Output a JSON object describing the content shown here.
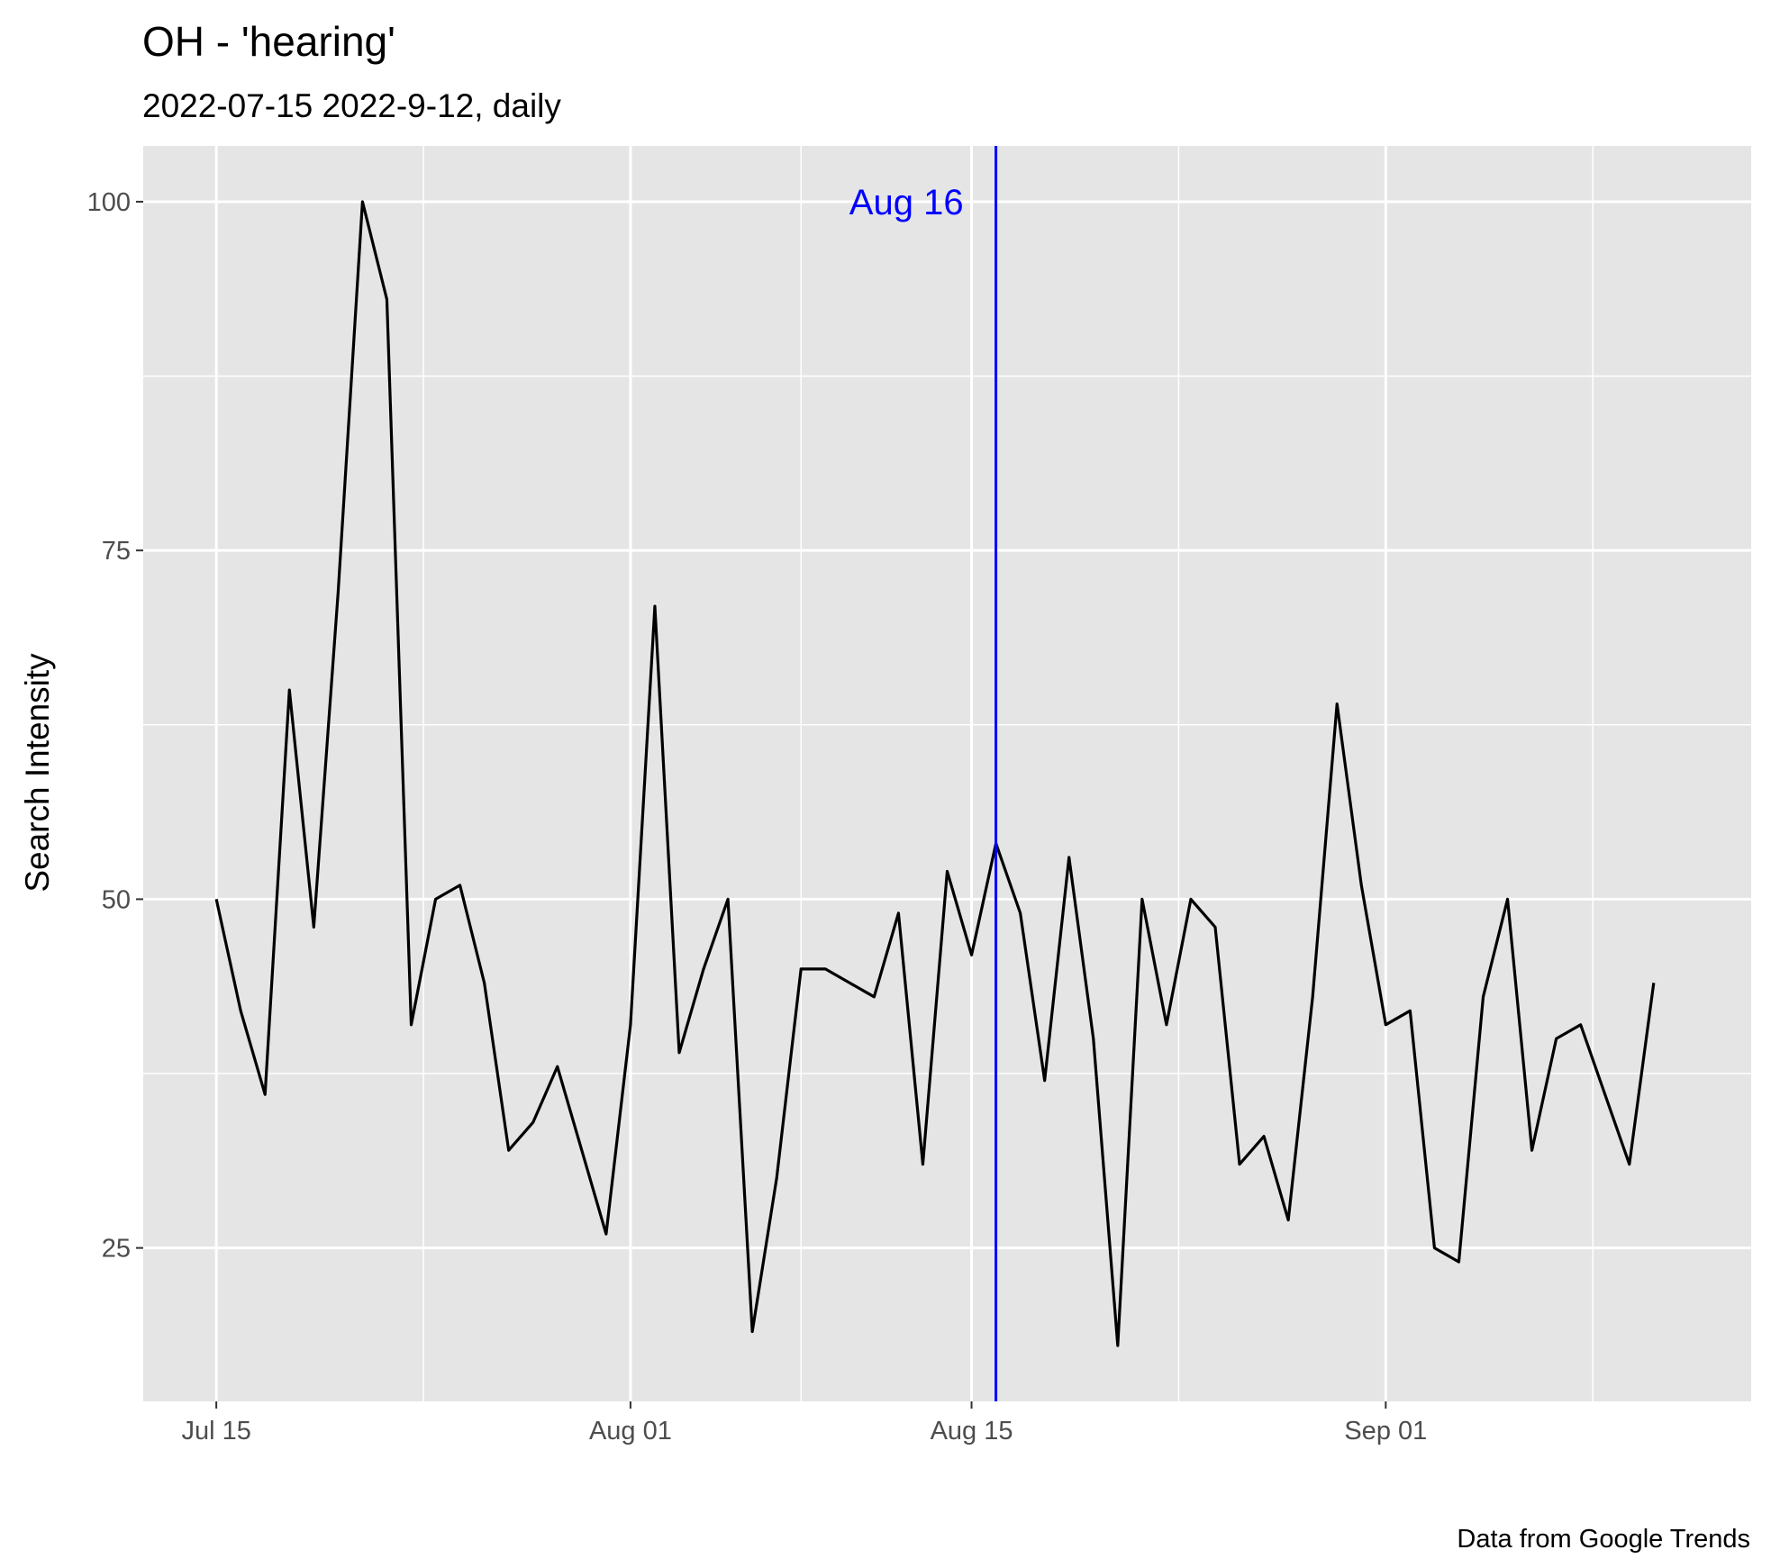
{
  "chart_data": {
    "type": "line",
    "title": "OH  - 'hearing'",
    "subtitle": "2022-07-15 2022-9-12, daily",
    "xlabel": "",
    "ylabel": "Search Intensity",
    "caption": "Data from Google Trends",
    "x_ticks": [
      {
        "date": "2022-07-15",
        "label": "Jul 15"
      },
      {
        "date": "2022-08-01",
        "label": "Aug 01"
      },
      {
        "date": "2022-08-15",
        "label": "Aug 15"
      },
      {
        "date": "2022-09-01",
        "label": "Sep 01"
      }
    ],
    "y_ticks": [
      25,
      50,
      75,
      100
    ],
    "xlim": [
      "2022-07-12",
      "2022-09-16"
    ],
    "ylim": [
      14,
      104
    ],
    "grid": true,
    "series": [
      {
        "color": "#000000",
        "x": [
          "2022-07-15",
          "2022-07-16",
          "2022-07-17",
          "2022-07-18",
          "2022-07-19",
          "2022-07-20",
          "2022-07-21",
          "2022-07-22",
          "2022-07-23",
          "2022-07-24",
          "2022-07-25",
          "2022-07-26",
          "2022-07-27",
          "2022-07-28",
          "2022-07-29",
          "2022-07-30",
          "2022-07-31",
          "2022-08-01",
          "2022-08-02",
          "2022-08-03",
          "2022-08-04",
          "2022-08-05",
          "2022-08-06",
          "2022-08-07",
          "2022-08-08",
          "2022-08-09",
          "2022-08-10",
          "2022-08-11",
          "2022-08-12",
          "2022-08-13",
          "2022-08-14",
          "2022-08-15",
          "2022-08-16",
          "2022-08-17",
          "2022-08-18",
          "2022-08-19",
          "2022-08-20",
          "2022-08-21",
          "2022-08-22",
          "2022-08-23",
          "2022-08-24",
          "2022-08-25",
          "2022-08-26",
          "2022-08-27",
          "2022-08-28",
          "2022-08-29",
          "2022-08-30",
          "2022-08-31",
          "2022-09-01",
          "2022-09-02",
          "2022-09-03",
          "2022-09-04",
          "2022-09-05",
          "2022-09-06",
          "2022-09-07",
          "2022-09-08",
          "2022-09-09",
          "2022-09-10",
          "2022-09-11",
          "2022-09-12"
        ],
        "values": [
          50,
          42,
          36,
          65,
          48,
          72,
          100,
          93,
          41,
          50,
          51,
          44,
          32,
          34,
          38,
          32,
          26,
          41,
          71,
          39,
          45,
          50,
          19,
          30,
          45,
          45,
          44,
          43,
          49,
          31,
          52,
          46,
          54,
          49,
          37,
          53,
          40,
          18,
          50,
          41,
          50,
          48,
          31,
          33,
          27,
          43,
          64,
          51,
          41,
          42,
          25,
          24,
          43,
          50,
          32,
          40,
          41,
          36,
          31,
          44
        ]
      }
    ],
    "annotations": [
      {
        "type": "vline",
        "date": "2022-08-16",
        "label": "Aug 16",
        "color": "#0000ff"
      }
    ]
  }
}
